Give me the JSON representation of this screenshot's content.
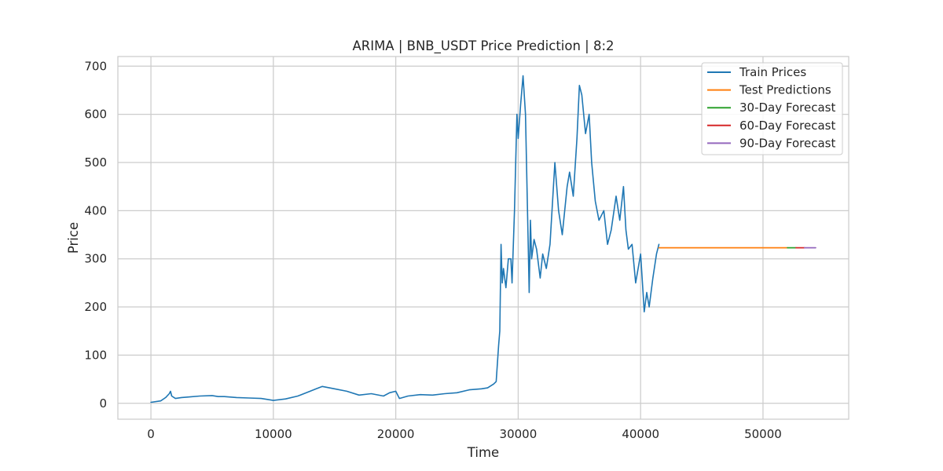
{
  "chart_data": {
    "type": "line",
    "title": "ARIMA | BNB_USDT Price Prediction | 8:2",
    "xlabel": "Time",
    "ylabel": "Price",
    "xlim": [
      -2700,
      57000
    ],
    "ylim": [
      -33,
      720
    ],
    "xticks": [
      0,
      10000,
      20000,
      30000,
      40000,
      50000
    ],
    "xtick_labels": [
      "0",
      "10000",
      "20000",
      "30000",
      "40000",
      "50000"
    ],
    "yticks": [
      0,
      100,
      200,
      300,
      400,
      500,
      600,
      700
    ],
    "ytick_labels": [
      "0",
      "100",
      "200",
      "300",
      "400",
      "500",
      "600",
      "700"
    ],
    "grid": true,
    "legend_position": "top-right",
    "series": [
      {
        "name": "Train Prices",
        "color": "#1f77b4",
        "x": [
          0,
          800,
          1200,
          1500,
          1600,
          1700,
          2000,
          2500,
          3000,
          4000,
          5000,
          5500,
          6000,
          7000,
          8000,
          9000,
          9500,
          10000,
          11000,
          12000,
          13000,
          13500,
          14000,
          15000,
          16000,
          17000,
          18000,
          19000,
          19500,
          20000,
          20300,
          21000,
          22000,
          23000,
          24000,
          25000,
          26000,
          27000,
          27500,
          28000,
          28200,
          28400,
          28500,
          28600,
          28700,
          28800,
          29000,
          29200,
          29400,
          29500,
          29700,
          29900,
          30000,
          30200,
          30400,
          30600,
          30800,
          30900,
          31000,
          31100,
          31300,
          31500,
          31800,
          32000,
          32300,
          32600,
          33000,
          33300,
          33600,
          34000,
          34200,
          34500,
          34800,
          35000,
          35200,
          35500,
          35800,
          36000,
          36300,
          36600,
          37000,
          37300,
          37600,
          38000,
          38300,
          38600,
          38800,
          39000,
          39300,
          39600,
          40000,
          40200,
          40300,
          40500,
          40700,
          41000,
          41300,
          41500
        ],
        "values": [
          2,
          5,
          12,
          20,
          25,
          15,
          10,
          12,
          13,
          15,
          16,
          14,
          14,
          12,
          11,
          10,
          8,
          6,
          9,
          15,
          25,
          30,
          35,
          30,
          25,
          17,
          20,
          15,
          22,
          25,
          10,
          15,
          18,
          17,
          20,
          22,
          28,
          30,
          32,
          40,
          45,
          120,
          150,
          330,
          250,
          280,
          240,
          300,
          300,
          250,
          400,
          600,
          550,
          620,
          680,
          600,
          350,
          230,
          380,
          300,
          340,
          320,
          260,
          310,
          280,
          330,
          500,
          400,
          350,
          450,
          480,
          430,
          550,
          660,
          640,
          560,
          600,
          500,
          420,
          380,
          400,
          330,
          360,
          430,
          380,
          450,
          360,
          320,
          330,
          250,
          310,
          230,
          190,
          230,
          200,
          260,
          310,
          330
        ]
      },
      {
        "name": "Test Predictions",
        "color": "#ff7f0e",
        "x": [
          41500,
          52000
        ],
        "values": [
          323,
          323
        ]
      },
      {
        "name": "30-Day Forecast",
        "color": "#2ca02c",
        "x": [
          52000,
          52700
        ],
        "values": [
          323,
          323
        ]
      },
      {
        "name": "60-Day Forecast",
        "color": "#d62728",
        "x": [
          52700,
          53400
        ],
        "values": [
          323,
          323
        ]
      },
      {
        "name": "90-Day Forecast",
        "color": "#9467bd",
        "x": [
          53400,
          54300
        ],
        "values": [
          323,
          323
        ]
      }
    ]
  }
}
